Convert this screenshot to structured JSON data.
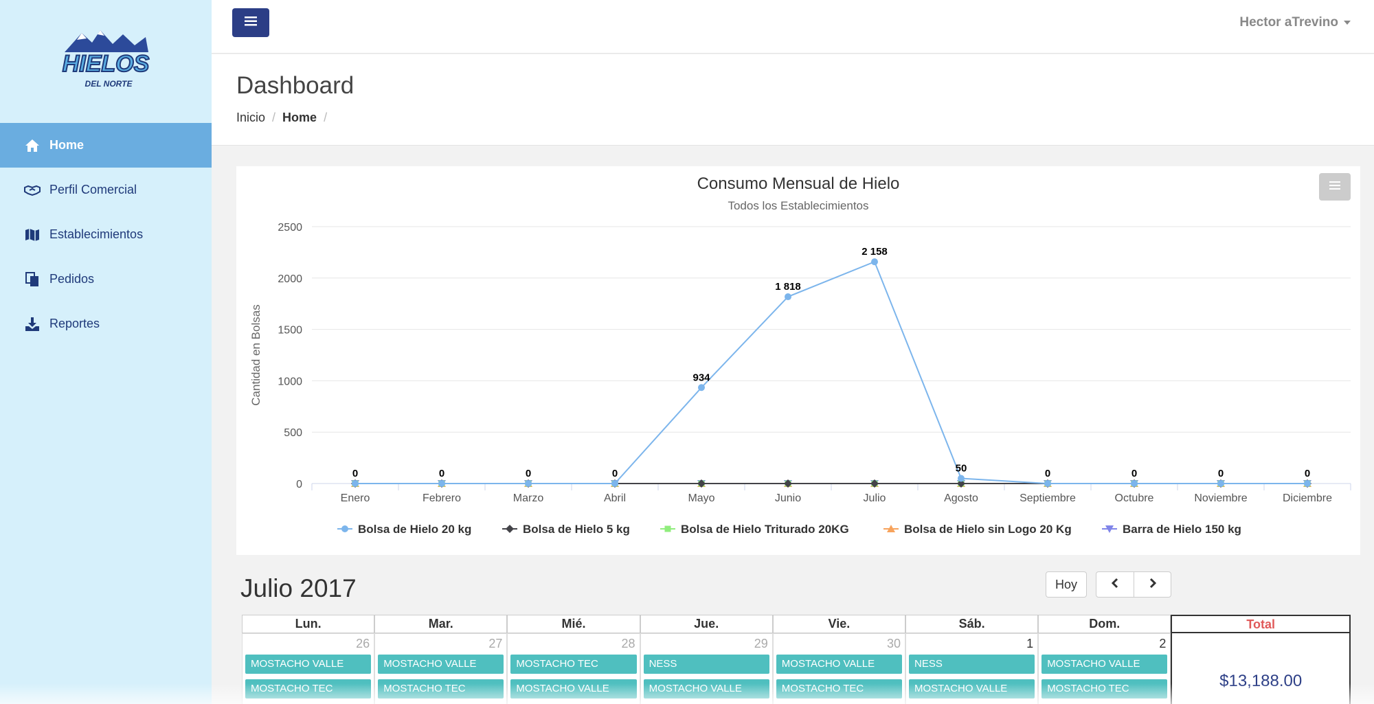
{
  "brand": {
    "logo_text": "HIELOS",
    "logo_sub": "DEL NORTE"
  },
  "sidebar": {
    "items": [
      {
        "label": "Home",
        "icon": "home-icon",
        "active": true
      },
      {
        "label": "Perfil Comercial",
        "icon": "handshake-icon",
        "active": false
      },
      {
        "label": "Establecimientos",
        "icon": "map-icon",
        "active": false
      },
      {
        "label": "Pedidos",
        "icon": "documents-icon",
        "active": false
      },
      {
        "label": "Reportes",
        "icon": "download-icon",
        "active": false
      }
    ]
  },
  "topbar": {
    "user_name": "Hector aTrevino"
  },
  "header": {
    "title": "Dashboard",
    "breadcrumb": [
      "Inicio",
      "Home"
    ]
  },
  "chart_data": {
    "type": "line",
    "title": "Consumo Mensual de Hielo",
    "subtitle": "Todos los Establecimientos",
    "ylabel": "Cantidad en Bolsas",
    "xlabel": "",
    "ylim": [
      0,
      2500
    ],
    "yticks": [
      0,
      500,
      1000,
      1500,
      2000,
      2500
    ],
    "grid": true,
    "legend_position": "bottom",
    "categories": [
      "Enero",
      "Febrero",
      "Marzo",
      "Abril",
      "Mayo",
      "Junio",
      "Julio",
      "Agosto",
      "Septiembre",
      "Octubre",
      "Noviembre",
      "Diciembre"
    ],
    "series": [
      {
        "name": "Bolsa de Hielo 20 kg",
        "color": "#7cb5ec",
        "marker": "circle",
        "values": [
          0,
          0,
          0,
          0,
          934,
          1818,
          2158,
          50,
          0,
          0,
          0,
          0
        ],
        "labels": [
          "0",
          "0",
          "0",
          "0",
          "934",
          "1 818",
          "2 158",
          "50",
          "0",
          "0",
          "0",
          "0"
        ]
      },
      {
        "name": "Bolsa de Hielo 5 kg",
        "color": "#434348",
        "marker": "diamond",
        "values": [
          0,
          0,
          0,
          0,
          0,
          0,
          0,
          0,
          0,
          0,
          0,
          0
        ]
      },
      {
        "name": "Bolsa de Hielo Triturado 20KG",
        "color": "#90ed7d",
        "marker": "square",
        "values": [
          0,
          0,
          0,
          0,
          0,
          0,
          0,
          0,
          0,
          0,
          0,
          0
        ]
      },
      {
        "name": "Bolsa de Hielo sin Logo 20 Kg",
        "color": "#f7a35c",
        "marker": "triangle",
        "values": [
          0,
          0,
          0,
          0,
          0,
          0,
          0,
          0,
          0,
          0,
          0,
          0
        ]
      },
      {
        "name": "Barra de Hielo 150 kg",
        "color": "#8085e9",
        "marker": "triangle-down",
        "values": [
          0,
          0,
          0,
          0,
          0,
          0,
          0,
          0,
          0,
          0,
          0,
          0
        ]
      }
    ]
  },
  "calendar": {
    "title": "Julio 2017",
    "today_label": "Hoy",
    "headers": [
      "Lun.",
      "Mar.",
      "Mié.",
      "Jue.",
      "Vie.",
      "Sáb.",
      "Dom."
    ],
    "total_header": "Total",
    "days": [
      {
        "num": "26",
        "current": false,
        "events": [
          "MOSTACHO VALLE",
          "MOSTACHO TEC"
        ]
      },
      {
        "num": "27",
        "current": false,
        "events": [
          "MOSTACHO VALLE",
          "MOSTACHO TEC"
        ]
      },
      {
        "num": "28",
        "current": false,
        "events": [
          "MOSTACHO TEC",
          "MOSTACHO VALLE"
        ]
      },
      {
        "num": "29",
        "current": false,
        "events": [
          "NESS",
          "MOSTACHO VALLE"
        ]
      },
      {
        "num": "30",
        "current": false,
        "events": [
          "MOSTACHO VALLE",
          "MOSTACHO TEC"
        ]
      },
      {
        "num": "1",
        "current": true,
        "events": [
          "NESS",
          "MOSTACHO VALLE"
        ]
      },
      {
        "num": "2",
        "current": true,
        "events": [
          "MOSTACHO VALLE",
          "MOSTACHO TEC"
        ]
      }
    ],
    "week_total": "$13,188.00"
  }
}
